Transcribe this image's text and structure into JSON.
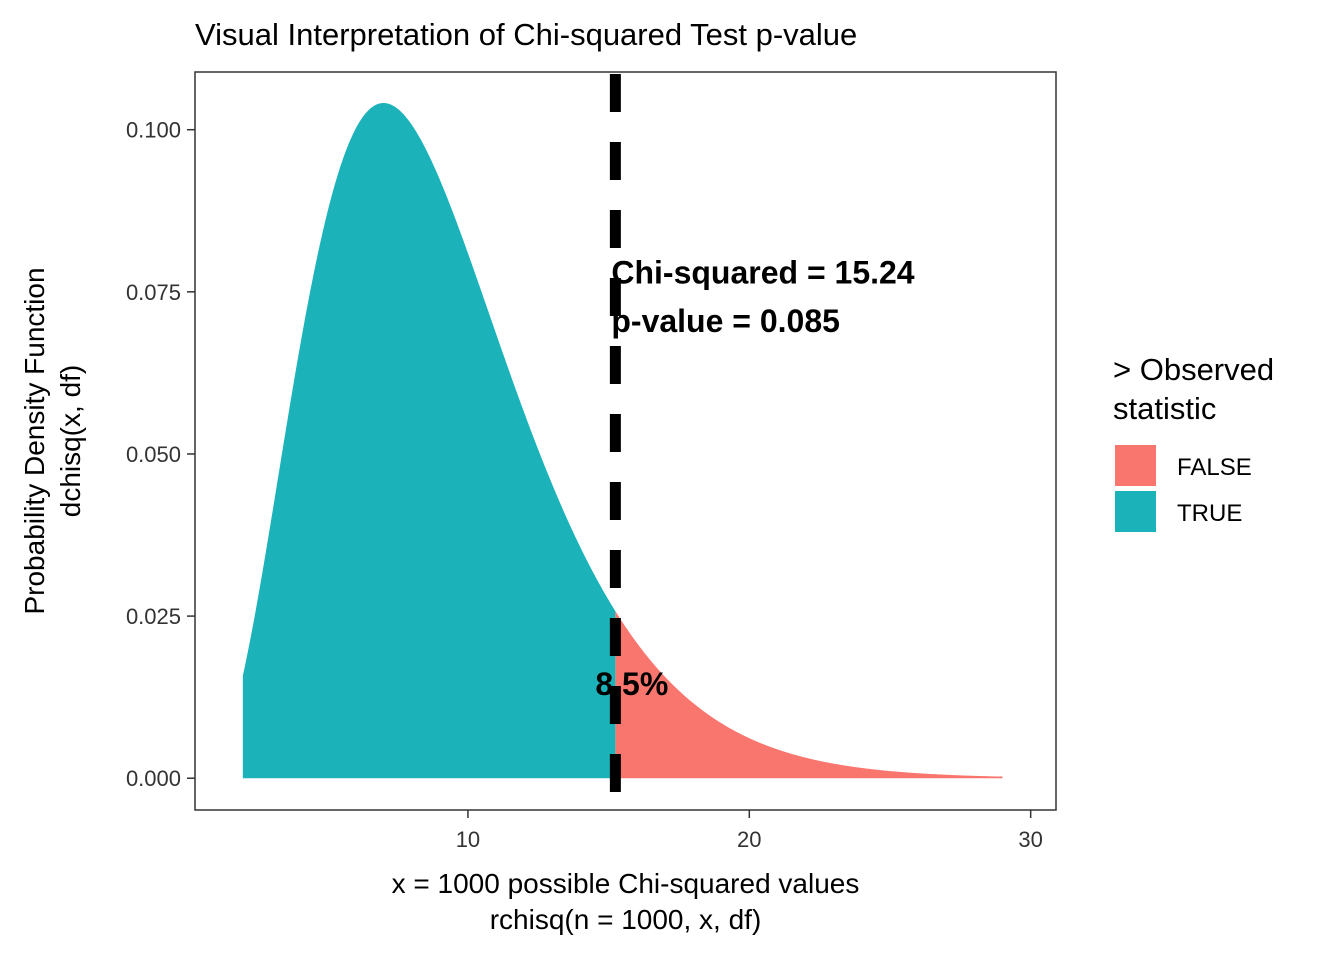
{
  "chart_data": {
    "type": "area",
    "title": "Visual Interpretation of Chi-squared Test p-value",
    "xlabel_lines": [
      "x = 1000 possible Chi-squared values",
      "rchisq(n = 1000, x, df)"
    ],
    "ylabel_lines": [
      "Probability Density Function",
      "dchisq(x, df)"
    ],
    "x_ticks": [
      10,
      20,
      30
    ],
    "x_tick_labels": [
      "10",
      "20",
      "30"
    ],
    "y_ticks": [
      0,
      0.025,
      0.05,
      0.075,
      0.1
    ],
    "y_tick_labels": [
      "0.000",
      "0.025",
      "0.050",
      "0.075",
      "0.100"
    ],
    "xlim": [
      0.3,
      30.9
    ],
    "ylim": [
      -0.0049,
      0.1089
    ],
    "grid": false,
    "distribution": "chi-squared",
    "df": 9,
    "x_range": [
      2.0,
      29.0
    ],
    "observed_statistic": 15.24,
    "series": [
      {
        "name": "FALSE",
        "color": "#F8766D",
        "x_range": [
          15.24,
          29.0
        ]
      },
      {
        "name": "TRUE",
        "color": "#00BFC4",
        "x_range": [
          2.0,
          15.24
        ]
      }
    ],
    "fill_colors": {
      "FALSE": "#F8766D",
      "TRUE": "#1BB3B9"
    },
    "reference_line": {
      "x": 15.24,
      "style": "dashed",
      "color": "#000000"
    },
    "annotations": [
      {
        "text": "Chi-squared = 15.24",
        "x": 15.24,
        "y": 0.078
      },
      {
        "text": "p-value = 0.085",
        "x": 15.24,
        "y": 0.0705
      },
      {
        "text": "8.5%",
        "x": 15.24,
        "y": 0.0145
      }
    ],
    "legend": {
      "position": "right",
      "title_lines": [
        "> Observed",
        "statistic"
      ],
      "entries": [
        {
          "label": "FALSE",
          "color": "#F8766D"
        },
        {
          "label": "TRUE",
          "color": "#1BB3B9"
        }
      ]
    }
  }
}
